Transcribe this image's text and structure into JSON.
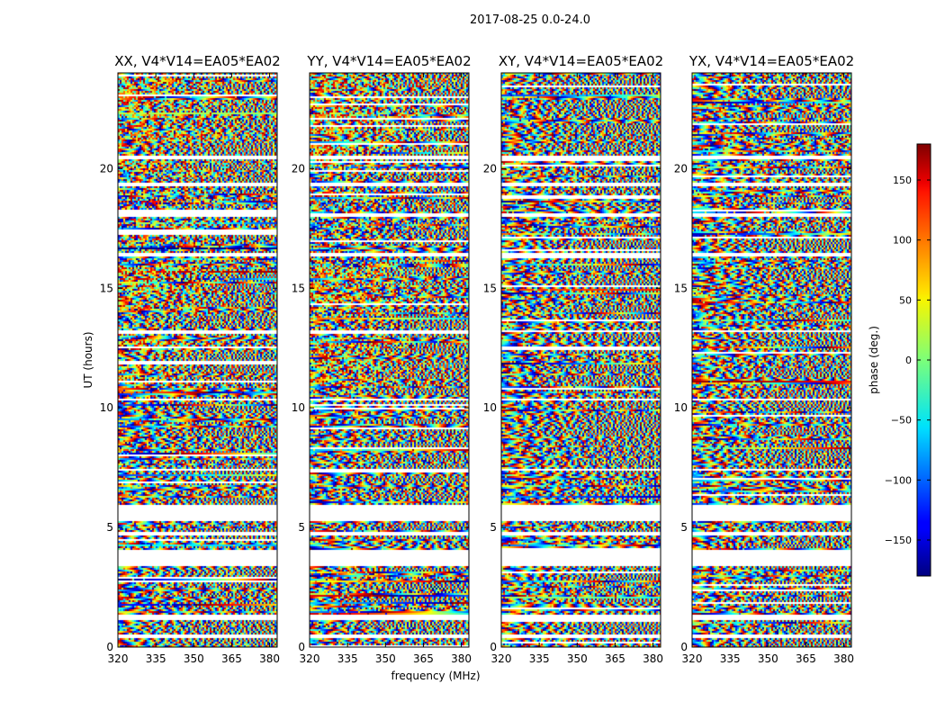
{
  "chart_data": {
    "type": "heatmap",
    "title": "2017-08-25 0.0-24.0",
    "xlabel": "frequency (MHz)",
    "ylabel": "UT (hours)",
    "xlim": [
      320,
      383
    ],
    "ylim": [
      0,
      24
    ],
    "x_ticks": [
      "320",
      "335",
      "350",
      "365",
      "380"
    ],
    "y_ticks": [
      "0",
      "5",
      "10",
      "15",
      "20"
    ],
    "panels": [
      {
        "title": "XX, V4*V14=EA05*EA02"
      },
      {
        "title": "YY, V4*V14=EA05*EA02"
      },
      {
        "title": "XY, V4*V14=EA05*EA02"
      },
      {
        "title": "YX, V4*V14=EA05*EA02"
      }
    ],
    "colorbar": {
      "label": "phase (deg.)",
      "range": [
        -180,
        180
      ],
      "ticks": [
        "150",
        "100",
        "50",
        "0",
        "−50",
        "−100",
        "−150"
      ],
      "colormap": "jet"
    },
    "data_gaps_hours": [
      [
        0.45,
        0.55
      ],
      [
        1.2,
        1.4
      ],
      [
        3.4,
        4.1
      ],
      [
        4.7,
        4.85
      ],
      [
        5.3,
        6.0
      ],
      [
        7.4,
        7.5
      ],
      [
        10.35,
        10.45
      ],
      [
        13.2,
        13.3
      ],
      [
        16.4,
        16.55
      ],
      [
        18.05,
        18.2
      ],
      [
        19.3,
        19.45
      ],
      [
        20.45,
        20.55
      ]
    ]
  }
}
